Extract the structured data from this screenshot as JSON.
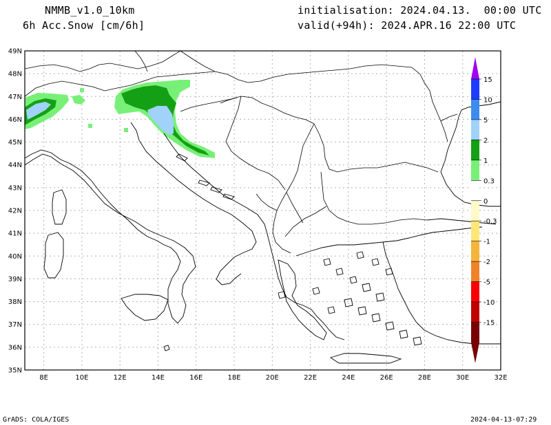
{
  "header": {
    "model": "NMMB_v1.0_10km",
    "variable": "6h Acc.Snow [cm/6h]",
    "init": "initialisation: 2024.04.13.  00:00 UTC",
    "valid": "valid(+94h): 2024.APR.16 22:00 UTC"
  },
  "footer": {
    "credit": "GrADS: COLA/IGES",
    "timestamp": "2024-04-13-07:29"
  },
  "map": {
    "lat_labels": [
      "49N",
      "48N",
      "47N",
      "46N",
      "45N",
      "44N",
      "43N",
      "42N",
      "41N",
      "40N",
      "39N",
      "38N",
      "37N",
      "36N",
      "35N"
    ],
    "lon_labels": [
      "8E",
      "10E",
      "12E",
      "14E",
      "16E",
      "18E",
      "20E",
      "22E",
      "24E",
      "26E",
      "28E",
      "30E",
      "32E"
    ],
    "lat_range": [
      35,
      49
    ],
    "lon_range": [
      7,
      32
    ]
  },
  "legend": {
    "labels": [
      "15",
      "10",
      "5",
      "2",
      "1",
      "0.3",
      "0",
      "-0.3",
      "-1",
      "-2",
      "-5",
      "-10",
      "-15"
    ],
    "colors": [
      "#1e3cff",
      "#3c8cf0",
      "#a0d2fa",
      "#14a014",
      "#78f078",
      "#ffffff",
      "#fffac8",
      "#ffe678",
      "#f5b43c",
      "#f08228",
      "#fa0000",
      "#c00000",
      "#780000"
    ],
    "top_arrow_color": "#a000f0",
    "bottom_arrow_color": "#780000"
  },
  "snow_colors": {
    "light": "#78f078",
    "medium": "#14a014",
    "heavy": "#a0d2fa"
  }
}
